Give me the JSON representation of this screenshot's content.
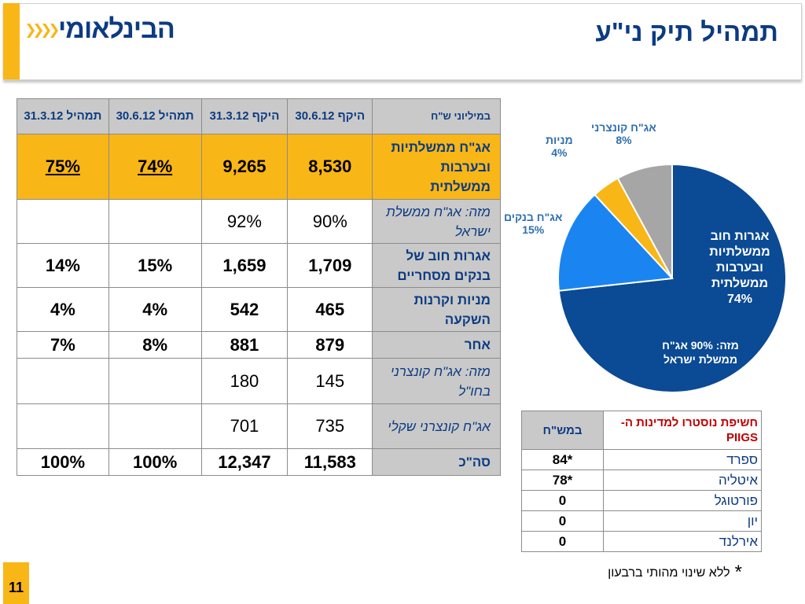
{
  "header": {
    "title": "תמהיל תיק ני\"ע",
    "logo_text": "הבינלאומי"
  },
  "table": {
    "columns": [
      "תמהיל 31.3.12",
      "תמהיל 30.6.12",
      "היקף 31.3.12",
      "היקף 30.6.12",
      "במיליוני ש\"ח"
    ],
    "rows": [
      {
        "label": "אג\"ח ממשלתיות ובערבות ממשלתית",
        "values": [
          "75%",
          "74%",
          "9,265",
          "8,530"
        ]
      },
      {
        "label": "מזה: אג\"ח ממשלת ישראל",
        "values": [
          "",
          "",
          "92%",
          "90%"
        ]
      },
      {
        "label": "אגרות חוב של בנקים מסחריים",
        "values": [
          "14%",
          "15%",
          "1,659",
          "1,709"
        ]
      },
      {
        "label": "מניות וקרנות השקעה",
        "values": [
          "4%",
          "4%",
          "542",
          "465"
        ]
      },
      {
        "label": "אחר",
        "values": [
          "7%",
          "8%",
          "881",
          "879"
        ]
      },
      {
        "label": "מזה: אג\"ח קונצרני בחו\"ל",
        "values": [
          "",
          "",
          "180",
          "145"
        ]
      },
      {
        "label": "אג\"ח קונצרני שקלי",
        "values": [
          "",
          "",
          "701",
          "735"
        ]
      },
      {
        "label": "סה\"כ",
        "values": [
          "100%",
          "100%",
          "12,347",
          "11,583"
        ]
      }
    ]
  },
  "chart_data": {
    "type": "pie",
    "slices": [
      {
        "label": "אגרות חוב ממשלתיות ובערבות ממשלתית",
        "value": 74,
        "color": "#0b4a94"
      },
      {
        "label": "אג\"ח בנקים",
        "value": 15,
        "color": "#1a85f0"
      },
      {
        "label": "מניות",
        "value": 4,
        "color": "#f8b617"
      },
      {
        "label": "אג\"ח קונצרני",
        "value": 8,
        "color": "#a6a6a6"
      }
    ],
    "slice_labels": {
      "gov_line1": "אגרות חוב",
      "gov_line2": "ממשלתיות",
      "gov_line3": "ובערבות",
      "gov_line4": "ממשלתית",
      "gov_pct": "74%",
      "gov_note1": "מזה: 90% אג\"ח",
      "gov_note2": "ממשלת ישראל",
      "bank_name": "אג\"ח בנקים",
      "bank_pct": "15%",
      "equity_name": "מניות",
      "equity_pct": "4%",
      "corp_name": "אג\"ח קונצרני",
      "corp_pct": "8%"
    }
  },
  "piigs": {
    "title": "חשיפת נוסטרו למדינות ה- PIIGS",
    "unit": "במש\"ח",
    "rows": [
      {
        "country": "ספרד",
        "value": "84*"
      },
      {
        "country": "איטליה",
        "value": "78*"
      },
      {
        "country": "פורטוגל",
        "value": "0"
      },
      {
        "country": "יון",
        "value": "0"
      },
      {
        "country": "אירלנד",
        "value": "0"
      }
    ]
  },
  "footnote": {
    "star": "*",
    "text": "ללא שינוי מהותי ברבעון"
  },
  "page_number": "11"
}
